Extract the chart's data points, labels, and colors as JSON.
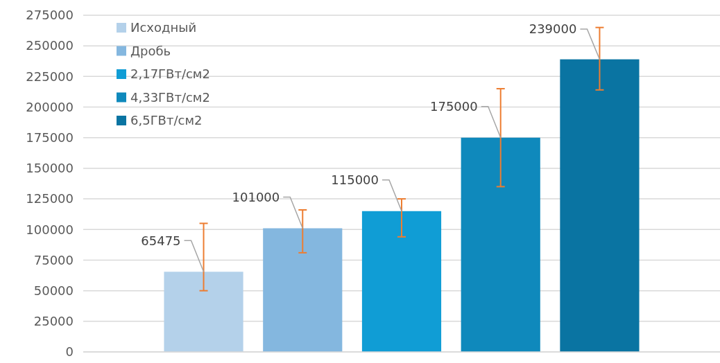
{
  "chart_data": {
    "type": "bar",
    "categories": [
      null
    ],
    "series": [
      {
        "name": "Исходный",
        "color": "#b4d1ea",
        "values": [
          65475
        ],
        "errors": [
          [
            50000,
            105000
          ]
        ]
      },
      {
        "name": "Дробь",
        "color": "#84b7df",
        "values": [
          101000
        ],
        "errors": [
          [
            81000,
            116000
          ]
        ]
      },
      {
        "name": "2,17ГВт/см2",
        "color": "#109dd5",
        "values": [
          115000
        ],
        "errors": [
          [
            94000,
            125000
          ]
        ]
      },
      {
        "name": "4,33ГВт/см2",
        "color": "#0f89bc",
        "values": [
          175000
        ],
        "errors": [
          [
            135000,
            215000
          ]
        ]
      },
      {
        "name": "6,5ГВт/см2",
        "color": "#0a74a2",
        "values": [
          239000
        ],
        "errors": [
          [
            214000,
            265000
          ]
        ]
      }
    ],
    "ylim": [
      0,
      275000
    ],
    "yticks": [
      0,
      25000,
      50000,
      75000,
      100000,
      125000,
      150000,
      175000,
      200000,
      225000,
      250000,
      275000
    ],
    "grid": "y",
    "legend": "top left",
    "data_labels": true
  }
}
